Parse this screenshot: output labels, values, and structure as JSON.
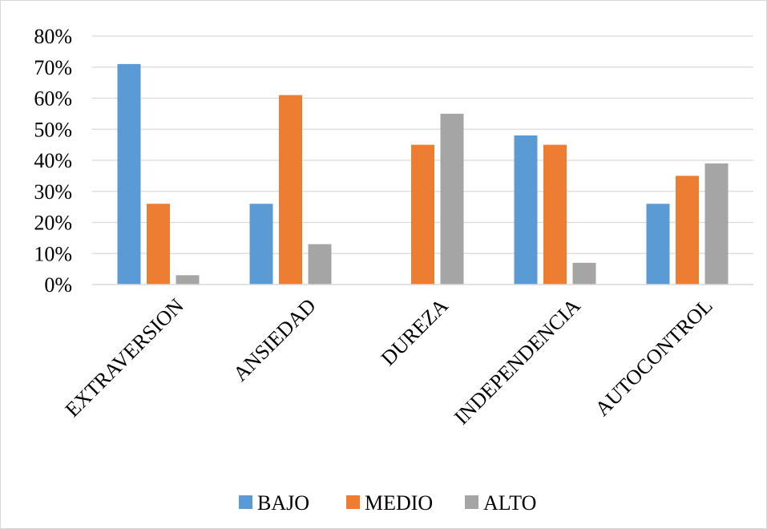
{
  "chart_data": {
    "type": "bar",
    "title": "",
    "xlabel": "",
    "ylabel": "",
    "categories": [
      "EXTRAVERSION",
      "ANSIEDAD",
      "DUREZA",
      "INDEPENDENCIA",
      "AUTOCONTROL"
    ],
    "series": [
      {
        "name": "BAJO",
        "color": "#5B9BD5",
        "values": [
          71,
          26,
          0,
          48,
          26
        ]
      },
      {
        "name": "MEDIO",
        "color": "#ED7D31",
        "values": [
          26,
          61,
          45,
          45,
          35
        ]
      },
      {
        "name": "ALTO",
        "color": "#A5A5A5",
        "values": [
          3,
          13,
          55,
          7,
          39
        ]
      }
    ],
    "ylim": [
      0,
      80
    ],
    "yticks": [
      "0%",
      "10%",
      "20%",
      "30%",
      "40%",
      "50%",
      "60%",
      "70%",
      "80%"
    ],
    "grid": true,
    "legend_position": "bottom"
  }
}
